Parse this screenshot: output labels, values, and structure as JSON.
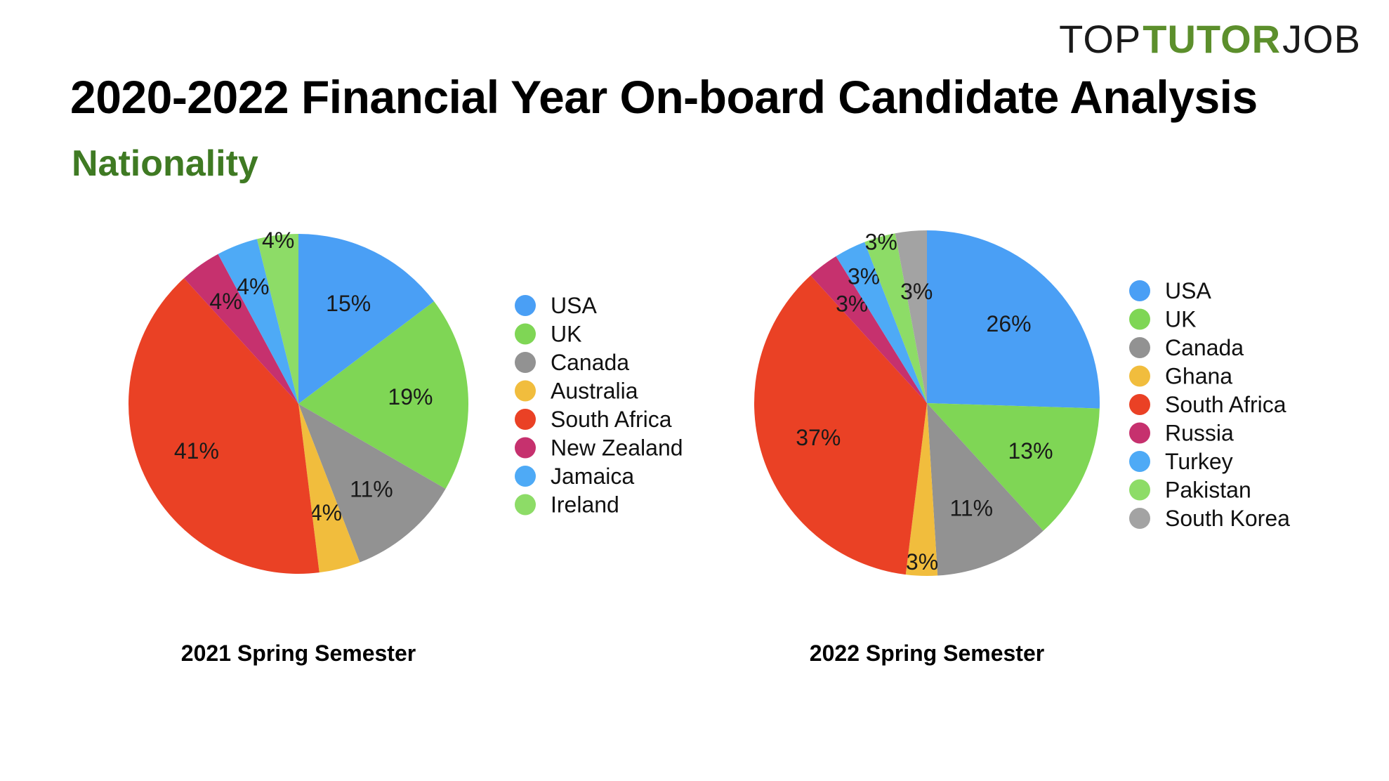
{
  "logo": {
    "part1": "TOP",
    "part2": "TUTOR",
    "part3": "JOB"
  },
  "title": "2020-2022 Financial Year On-board Candidate Analysis",
  "subtitle": "Nationality",
  "colors": {
    "title_green": "#3f7a23",
    "logo_green": "#5c8f2c"
  },
  "chart_data": [
    {
      "type": "pie",
      "title": "2021 Spring Semester",
      "unit": "%",
      "slices": [
        {
          "label": "USA",
          "value": 15,
          "color": "#4a9ff5"
        },
        {
          "label": "UK",
          "value": 19,
          "color": "#7fd655"
        },
        {
          "label": "Canada",
          "value": 11,
          "color": "#929292"
        },
        {
          "label": "Australia",
          "value": 4,
          "color": "#f1bd3d"
        },
        {
          "label": "South Africa",
          "value": 41,
          "color": "#ea4125"
        },
        {
          "label": "New Zealand",
          "value": 4,
          "color": "#c6316e"
        },
        {
          "label": "Jamaica",
          "value": 4,
          "color": "#4eaaf6"
        },
        {
          "label": "Ireland",
          "value": 4,
          "color": "#8ddc67"
        }
      ],
      "legend_position": "right"
    },
    {
      "type": "pie",
      "title": "2022 Spring Semester",
      "unit": "%",
      "slices": [
        {
          "label": "USA",
          "value": 26,
          "color": "#4a9ff5"
        },
        {
          "label": "UK",
          "value": 13,
          "color": "#7fd655"
        },
        {
          "label": "Canada",
          "value": 11,
          "color": "#929292"
        },
        {
          "label": "Ghana",
          "value": 3,
          "color": "#f1bd3d"
        },
        {
          "label": "South Africa",
          "value": 37,
          "color": "#ea4125"
        },
        {
          "label": "Russia",
          "value": 3,
          "color": "#c6316e"
        },
        {
          "label": "Turkey",
          "value": 3,
          "color": "#4eaaf6"
        },
        {
          "label": "Pakistan",
          "value": 3,
          "color": "#8ddc67"
        },
        {
          "label": "South Korea",
          "value": 3,
          "color": "#a3a3a3"
        }
      ],
      "legend_position": "right"
    }
  ]
}
